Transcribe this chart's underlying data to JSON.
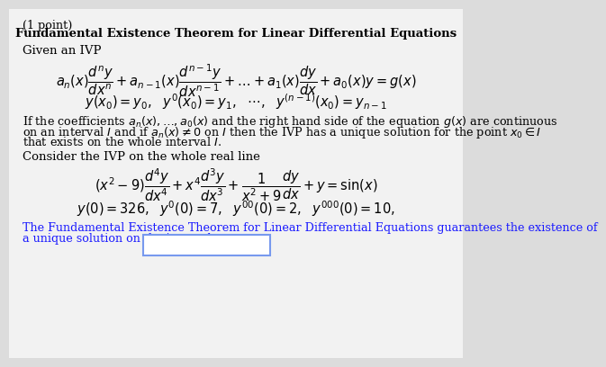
{
  "bg_color": "#dcdcdc",
  "inner_bg_color": "#f2f2f2",
  "title": "Fundamental Existence Theorem for Linear Differential Equations",
  "point_label": "(1 point)",
  "given_ivp": "Given an IVP",
  "eq1": "$a_n(x)\\dfrac{d^ny}{dx^n} + a_{n-1}(x)\\dfrac{d^{n-1}y}{dx^{n-1}} + \\ldots + a_1(x)\\dfrac{dy}{dx} + a_0(x)y = g(x)$",
  "eq2": "$y(x_0) = y_0,\\ y'(x_0) = y_1,\\ \\ \\cdots,\\ \\ y^{(n-1)}(x_0) = y_{n-1}$",
  "theorem_text1": "If the coefficients $a_n(x), \\ldots, a_0(x)$ and the right hand side of the equation $g(x)$ are continuous",
  "theorem_text2": "on an interval $I$ and if $a_n(x) \\neq 0$ on $I$ then the IVP has a unique solution for the point $x_0 \\in I$",
  "theorem_text3": "that exists on the whole interval $I$.",
  "consider_text": "Consider the IVP on the whole real line",
  "eq3": "$(x^2 - 9)\\dfrac{d^4y}{dx^4} + x^4\\dfrac{d^3y}{dx^3} + \\dfrac{1}{x^2+9}\\dfrac{dy}{dx} + y = \\sin(x)$",
  "eq4": "$y(0) = 326,\\ \\ y'(0) = 7,\\ \\ y''(0) = 2,\\ \\ y'''(0) = 10,$",
  "last_text1": "The Fundamental Existence Theorem for Linear Differential Equations guarantees the existence of",
  "last_text2": "a unique solution on the interval",
  "text_color": "#000000",
  "blue_text_color": "#1a1aff",
  "input_box_color": "#ffffff",
  "input_box_border": "#7799ee"
}
